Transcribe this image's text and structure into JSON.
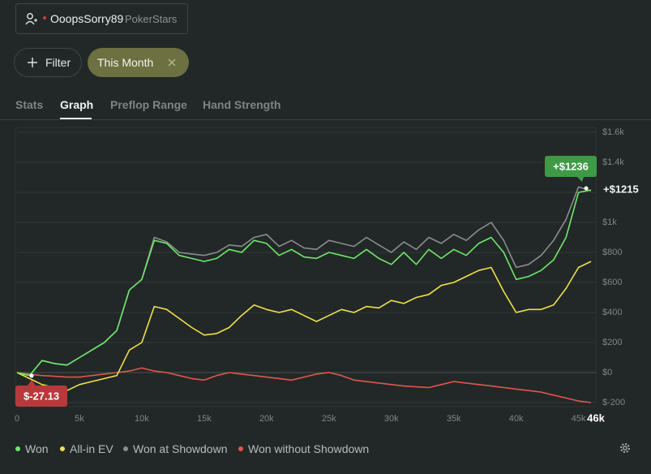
{
  "header": {
    "user": "OoopsSorry89",
    "site": "PokerStars"
  },
  "filters": {
    "filter": "Filter",
    "period": "This Month"
  },
  "tabs": [
    "Stats",
    "Graph",
    "Preflop Range",
    "Hand Strength"
  ],
  "active_tab": 1,
  "chart_data": {
    "type": "line",
    "x": [
      0,
      1000,
      2000,
      3000,
      4000,
      5000,
      6000,
      7000,
      8000,
      9000,
      10000,
      11000,
      12000,
      13000,
      14000,
      15000,
      16000,
      17000,
      18000,
      19000,
      20000,
      21000,
      22000,
      23000,
      24000,
      25000,
      26000,
      27000,
      28000,
      29000,
      30000,
      31000,
      32000,
      33000,
      34000,
      35000,
      36000,
      37000,
      38000,
      39000,
      40000,
      41000,
      42000,
      43000,
      44000,
      45000,
      46000
    ],
    "series": [
      {
        "name": "Won",
        "color": "#6ee86a",
        "values": [
          0,
          -20,
          80,
          60,
          50,
          100,
          150,
          200,
          280,
          550,
          620,
          880,
          860,
          780,
          760,
          740,
          760,
          820,
          800,
          880,
          860,
          780,
          820,
          770,
          760,
          800,
          780,
          760,
          820,
          760,
          720,
          800,
          720,
          820,
          760,
          820,
          780,
          860,
          900,
          800,
          620,
          640,
          680,
          750,
          900,
          1200,
          1215
        ]
      },
      {
        "name": "All-in EV",
        "color": "#f0e04a",
        "values": [
          0,
          -40,
          -80,
          -100,
          -120,
          -80,
          -60,
          -40,
          -20,
          150,
          200,
          440,
          420,
          360,
          300,
          250,
          260,
          300,
          380,
          450,
          420,
          400,
          420,
          380,
          340,
          380,
          420,
          400,
          440,
          430,
          480,
          460,
          500,
          520,
          580,
          600,
          640,
          680,
          700,
          540,
          400,
          420,
          420,
          450,
          560,
          700,
          740
        ]
      },
      {
        "name": "Won at Showdown",
        "color": "#8c8c8c",
        "values": [
          0,
          -20,
          80,
          60,
          50,
          100,
          150,
          200,
          280,
          550,
          620,
          900,
          870,
          800,
          790,
          780,
          800,
          850,
          840,
          900,
          920,
          840,
          880,
          830,
          820,
          880,
          860,
          840,
          900,
          850,
          800,
          870,
          820,
          900,
          860,
          920,
          880,
          950,
          1000,
          880,
          700,
          720,
          780,
          880,
          1020,
          1236,
          1210
        ]
      },
      {
        "name": "Won without Showdown",
        "color": "#e2554e",
        "values": [
          0,
          -10,
          -20,
          -25,
          -30,
          -30,
          -20,
          -10,
          0,
          10,
          30,
          10,
          0,
          -20,
          -40,
          -50,
          -20,
          0,
          -10,
          -20,
          -30,
          -40,
          -50,
          -30,
          -10,
          0,
          -20,
          -50,
          -60,
          -70,
          -80,
          -90,
          -95,
          -100,
          -80,
          -60,
          -70,
          -80,
          -90,
          -100,
          -110,
          -120,
          -130,
          -150,
          -170,
          -190,
          -200
        ]
      }
    ],
    "xlim": [
      0,
      46000
    ],
    "xticks": [
      0,
      {
        "value": 5000,
        "label": "5k"
      },
      {
        "value": 10000,
        "label": "10k"
      },
      {
        "value": 15000,
        "label": "15k"
      },
      {
        "value": 20000,
        "label": "20k"
      },
      {
        "value": 25000,
        "label": "25k"
      },
      {
        "value": 30000,
        "label": "30k"
      },
      {
        "value": 35000,
        "label": "35k"
      },
      {
        "value": 40000,
        "label": "40k"
      },
      {
        "value": 45000,
        "label": "45k"
      },
      {
        "value": 46000,
        "label": "46k"
      }
    ],
    "ylim": [
      -200,
      1600
    ],
    "yticks": [
      {
        "value": -200,
        "label": "$-200"
      },
      {
        "value": 0,
        "label": "$0"
      },
      {
        "value": 200,
        "label": "$200"
      },
      {
        "value": 400,
        "label": "$400"
      },
      {
        "value": 600,
        "label": "$600"
      },
      {
        "value": 800,
        "label": "$800"
      },
      {
        "value": 1000,
        "label": "$1k"
      },
      {
        "value": 1200,
        "label": null
      },
      {
        "value": 1400,
        "label": "$1.4k"
      },
      {
        "value": 1600,
        "label": "$1.6k"
      }
    ],
    "grid": true,
    "annotations": [
      "+$1236",
      "+$1215",
      "$-27.13"
    ]
  }
}
